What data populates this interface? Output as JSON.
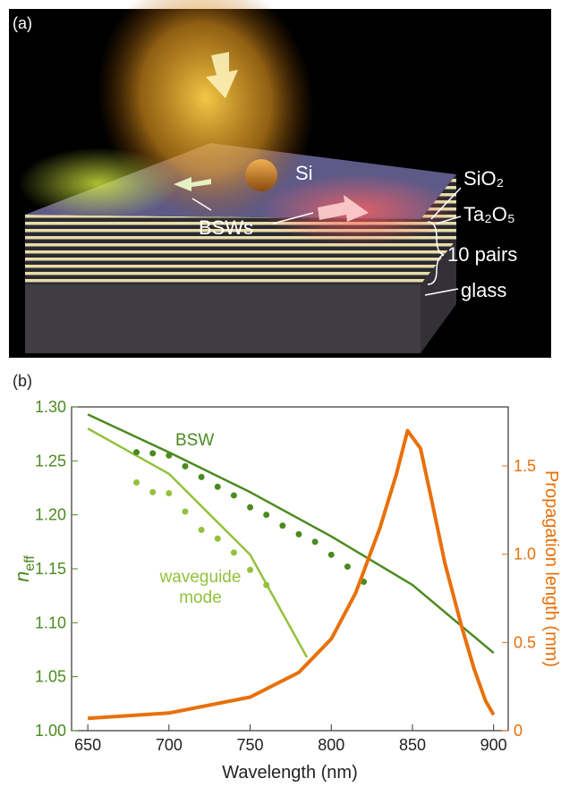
{
  "panel_a": {
    "label": "(a)",
    "texts": [
      "Si",
      "SiO₂",
      "Ta₂O₅",
      "10 pairs",
      "glass",
      "BSWs"
    ]
  },
  "chart_data": {
    "type": "line",
    "panel_label": "(b)",
    "xlabel": "Wavelength (nm)",
    "ylabel": [
      "n",
      "eff"
    ],
    "y2label": "Propagation length (mm)",
    "xlim": [
      640,
      909
    ],
    "ylim": [
      1.0,
      1.3
    ],
    "y2lim": [
      0,
      1.835
    ],
    "xticks": [
      650,
      700,
      750,
      800,
      850,
      900
    ],
    "yticks": [
      {
        "value": 1.0,
        "label": "1.00"
      },
      1.05,
      {
        "value": 1.1,
        "label": "1.10"
      },
      1.15,
      {
        "value": 1.2,
        "label": "1.20"
      },
      1.25,
      {
        "value": 1.3,
        "label": "1.30"
      }
    ],
    "y2ticks": [
      0,
      0.5,
      {
        "value": 1.0,
        "label": "1.0"
      },
      1.5
    ],
    "annotations": [
      "BSW",
      "waveguide",
      "mode"
    ],
    "series": [
      {
        "color": "#4b8a1f",
        "style": "line",
        "x": [
          650,
          700,
          750,
          800,
          850,
          900
        ],
        "values": [
          1.293,
          1.258,
          1.221,
          1.18,
          1.135,
          1.072
        ]
      },
      {
        "color": "#93c13c",
        "style": "line",
        "x": [
          650,
          700,
          750,
          785
        ],
        "values": [
          1.28,
          1.238,
          1.163,
          1.068
        ]
      },
      {
        "color": "#4b8a1f",
        "style": "dots",
        "x": [
          680,
          690,
          700,
          710,
          720,
          730,
          740,
          750,
          760,
          770,
          780,
          790,
          800,
          810,
          820
        ],
        "values": [
          1.258,
          1.257,
          1.255,
          1.245,
          1.235,
          1.226,
          1.218,
          1.207,
          1.2,
          1.19,
          1.182,
          1.175,
          1.163,
          1.152,
          1.138
        ]
      },
      {
        "color": "#93c13c",
        "style": "dots",
        "x": [
          680,
          690,
          700,
          710,
          720,
          730,
          740,
          750,
          760
        ],
        "values": [
          1.23,
          1.221,
          1.22,
          1.203,
          1.186,
          1.178,
          1.165,
          1.149,
          1.135
        ]
      },
      {
        "color": "#e8700a",
        "style": "line",
        "axis": "y2",
        "x": [
          650,
          700,
          750,
          780,
          800,
          815,
          830,
          840,
          847,
          855,
          862,
          870,
          880,
          888,
          895,
          900
        ],
        "values": [
          0.07,
          0.1,
          0.19,
          0.33,
          0.52,
          0.78,
          1.15,
          1.45,
          1.7,
          1.6,
          1.3,
          0.95,
          0.6,
          0.35,
          0.17,
          0.09
        ]
      }
    ]
  }
}
